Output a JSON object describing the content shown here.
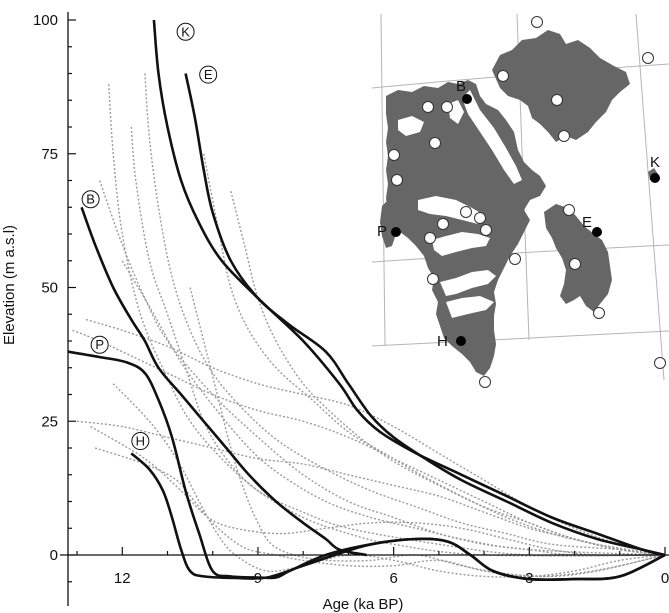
{
  "chart_data": {
    "type": "line",
    "xlabel": "Age (ka BP)",
    "ylabel": "Elevation (m a.s.l)",
    "xlim": [
      13.2,
      0
    ],
    "ylim": [
      -7,
      100
    ],
    "x_ticks": [
      {
        "value": 12,
        "label": "12"
      },
      {
        "value": 9,
        "label": "9"
      },
      {
        "value": 6,
        "label": "6"
      },
      {
        "value": 3,
        "label": "3"
      },
      {
        "value": 0,
        "label": "0"
      }
    ],
    "y_ticks": [
      {
        "value": 0,
        "label": "0"
      },
      {
        "value": 25,
        "label": "25"
      },
      {
        "value": 50,
        "label": "50"
      },
      {
        "value": 75,
        "label": "75"
      },
      {
        "value": 100,
        "label": "100"
      }
    ],
    "highlighted_series": [
      {
        "name": "K",
        "label_at": [
          10.6,
          97.8
        ],
        "points": [
          [
            11.3,
            100
          ],
          [
            11.2,
            90
          ],
          [
            11.0,
            80
          ],
          [
            10.7,
            70
          ],
          [
            10.3,
            62
          ],
          [
            9.8,
            55
          ],
          [
            9.0,
            48
          ],
          [
            8.0,
            40
          ],
          [
            7.2,
            32
          ],
          [
            6.8,
            27
          ],
          [
            6.3,
            23
          ],
          [
            5.5,
            19
          ],
          [
            4.5,
            15
          ],
          [
            3.5,
            11
          ],
          [
            2.5,
            7
          ],
          [
            1.5,
            4
          ],
          [
            0.5,
            1
          ],
          [
            0,
            0
          ]
        ]
      },
      {
        "name": "E",
        "label_at": [
          10.1,
          89.8
        ],
        "points": [
          [
            10.6,
            90
          ],
          [
            10.4,
            82
          ],
          [
            10.2,
            72
          ],
          [
            10.0,
            64
          ],
          [
            9.6,
            55
          ],
          [
            9.0,
            48
          ],
          [
            8.3,
            43
          ],
          [
            7.5,
            38
          ],
          [
            7.0,
            32
          ],
          [
            6.5,
            26
          ],
          [
            6.0,
            22
          ],
          [
            5.3,
            18
          ],
          [
            4.5,
            14
          ],
          [
            3.5,
            10
          ],
          [
            2.5,
            6
          ],
          [
            1.5,
            3
          ],
          [
            0.5,
            1
          ],
          [
            0,
            0
          ]
        ]
      },
      {
        "name": "B",
        "label_at": [
          12.7,
          66.5
        ],
        "points": [
          [
            12.9,
            65
          ],
          [
            12.6,
            58
          ],
          [
            12.2,
            50
          ],
          [
            11.8,
            44
          ],
          [
            11.5,
            40
          ],
          [
            11.2,
            35
          ],
          [
            10.7,
            30
          ],
          [
            10.2,
            25
          ],
          [
            9.7,
            20
          ],
          [
            9.2,
            15
          ],
          [
            8.6,
            10
          ],
          [
            8.0,
            6
          ],
          [
            7.5,
            3
          ],
          [
            7.2,
            1
          ],
          [
            6.6,
            0
          ]
        ]
      },
      {
        "name": "P",
        "label_at": [
          12.5,
          39.3
        ],
        "points": [
          [
            13.2,
            38
          ],
          [
            12.5,
            37
          ],
          [
            11.9,
            36
          ],
          [
            11.5,
            34
          ],
          [
            11.2,
            29
          ],
          [
            10.9,
            22
          ],
          [
            10.6,
            12
          ],
          [
            10.3,
            4
          ],
          [
            10.0,
            -3
          ],
          [
            9.6,
            -4
          ],
          [
            9.0,
            -4.2
          ],
          [
            8.6,
            -4.2
          ],
          [
            8.3,
            -3
          ],
          [
            7.5,
            0
          ],
          [
            6.5,
            2
          ],
          [
            5.5,
            3
          ],
          [
            4.8,
            2.5
          ],
          [
            4.3,
            0
          ],
          [
            3.8,
            -3
          ],
          [
            3.0,
            -4.5
          ],
          [
            2.0,
            -4.5
          ],
          [
            1.0,
            -4
          ],
          [
            0,
            0
          ]
        ]
      },
      {
        "name": "H",
        "label_at": [
          11.6,
          21.3
        ],
        "points": [
          [
            11.8,
            19
          ],
          [
            11.4,
            16
          ],
          [
            11.1,
            12
          ],
          [
            10.9,
            7
          ],
          [
            10.7,
            1
          ],
          [
            10.5,
            -3
          ],
          [
            10.2,
            -4
          ],
          [
            9.5,
            -4.3
          ],
          [
            8.8,
            -4.2
          ],
          [
            8.0,
            -2
          ],
          [
            7.3,
            0
          ],
          [
            6.5,
            2
          ],
          [
            5.5,
            3
          ],
          [
            4.8,
            2.5
          ],
          [
            4.3,
            0
          ],
          [
            3.8,
            -3
          ],
          [
            3.0,
            -4.5
          ],
          [
            2.0,
            -4.5
          ],
          [
            1.0,
            -4
          ],
          [
            0,
            0
          ]
        ]
      }
    ],
    "background_series": [
      {
        "points": [
          [
            12.5,
            70
          ],
          [
            12.0,
            58
          ],
          [
            11.5,
            48
          ],
          [
            11.0,
            40
          ],
          [
            10.0,
            30
          ],
          [
            9.0,
            22
          ],
          [
            8.0,
            15
          ],
          [
            7.0,
            10
          ],
          [
            6.0,
            7
          ],
          [
            5.0,
            4
          ],
          [
            4.0,
            2
          ],
          [
            3.0,
            1
          ],
          [
            2.0,
            0
          ],
          [
            0,
            0
          ]
        ]
      },
      {
        "points": [
          [
            12.3,
            88
          ],
          [
            12.2,
            75
          ],
          [
            12.0,
            60
          ],
          [
            11.6,
            45
          ],
          [
            11.0,
            33
          ],
          [
            10.5,
            25
          ],
          [
            9.8,
            18
          ],
          [
            9.0,
            12
          ],
          [
            8.0,
            7
          ],
          [
            7.0,
            4
          ],
          [
            6.0,
            2
          ],
          [
            4.0,
            0
          ],
          [
            0,
            0
          ]
        ]
      },
      {
        "points": [
          [
            11.8,
            80
          ],
          [
            11.7,
            70
          ],
          [
            11.4,
            55
          ],
          [
            11.0,
            45
          ],
          [
            10.6,
            35
          ],
          [
            10.2,
            25
          ],
          [
            9.7,
            18
          ],
          [
            9.0,
            12
          ],
          [
            8.0,
            8
          ],
          [
            7.0,
            5
          ],
          [
            5.0,
            2
          ],
          [
            3.0,
            0
          ],
          [
            0,
            0
          ]
        ]
      },
      {
        "points": [
          [
            12.0,
            55
          ],
          [
            11.3,
            45
          ],
          [
            10.7,
            36
          ],
          [
            10.0,
            28
          ],
          [
            9.2,
            20
          ],
          [
            8.5,
            15
          ],
          [
            7.5,
            10
          ],
          [
            6.5,
            7
          ],
          [
            5.5,
            5
          ],
          [
            4.5,
            3
          ],
          [
            3.0,
            1
          ],
          [
            0,
            0
          ]
        ]
      },
      {
        "points": [
          [
            13.1,
            42
          ],
          [
            12.5,
            40
          ],
          [
            12.0,
            38
          ],
          [
            11.0,
            34
          ],
          [
            10.0,
            30
          ],
          [
            9.0,
            27
          ],
          [
            8.0,
            25
          ],
          [
            7.0,
            22
          ],
          [
            6.0,
            18
          ],
          [
            5.0,
            14
          ],
          [
            4.0,
            10
          ],
          [
            3.0,
            6
          ],
          [
            2.0,
            3
          ],
          [
            1.0,
            1
          ],
          [
            0,
            0
          ]
        ]
      },
      {
        "points": [
          [
            12.8,
            44
          ],
          [
            12.0,
            42
          ],
          [
            11.0,
            39
          ],
          [
            10.0,
            35
          ],
          [
            9.0,
            32
          ],
          [
            8.0,
            30
          ],
          [
            7.0,
            28
          ],
          [
            6.0,
            24
          ],
          [
            5.0,
            19
          ],
          [
            4.0,
            14
          ],
          [
            3.0,
            9
          ],
          [
            2.0,
            5
          ],
          [
            1.0,
            2
          ],
          [
            0,
            0
          ]
        ]
      },
      {
        "points": [
          [
            13.0,
            25
          ],
          [
            12.0,
            24
          ],
          [
            11.0,
            22
          ],
          [
            10.0,
            20
          ],
          [
            9.0,
            18
          ],
          [
            8.0,
            17
          ],
          [
            7.0,
            15
          ],
          [
            6.0,
            13
          ],
          [
            5.0,
            11
          ],
          [
            4.0,
            8
          ],
          [
            3.0,
            5
          ],
          [
            2.0,
            3
          ],
          [
            1.0,
            1
          ],
          [
            0,
            0
          ]
        ]
      },
      {
        "points": [
          [
            12.6,
            20
          ],
          [
            11.5,
            17
          ],
          [
            10.8,
            14
          ],
          [
            10.4,
            10
          ],
          [
            10.0,
            6
          ],
          [
            9.6,
            3
          ],
          [
            9.2,
            1
          ],
          [
            8.6,
            0
          ],
          [
            8.0,
            -1
          ],
          [
            7.0,
            -2
          ],
          [
            6.0,
            -2
          ],
          [
            5.0,
            -1
          ],
          [
            4.0,
            -3
          ],
          [
            3.0,
            -4
          ],
          [
            2.0,
            -3.5
          ],
          [
            1.0,
            -2
          ],
          [
            0,
            0
          ]
        ]
      },
      {
        "points": [
          [
            12.2,
            32
          ],
          [
            11.4,
            25
          ],
          [
            10.8,
            18
          ],
          [
            10.3,
            10
          ],
          [
            9.9,
            4
          ],
          [
            9.5,
            0
          ],
          [
            8.8,
            -3
          ],
          [
            8.0,
            -2
          ],
          [
            7.0,
            0
          ],
          [
            6.0,
            -1
          ],
          [
            5.0,
            -3
          ],
          [
            4.0,
            -4
          ],
          [
            3.0,
            -4
          ],
          [
            2.0,
            -3
          ],
          [
            1.0,
            -1
          ],
          [
            0,
            0
          ]
        ]
      },
      {
        "points": [
          [
            11.5,
            90
          ],
          [
            11.4,
            78
          ],
          [
            11.2,
            65
          ],
          [
            10.9,
            52
          ],
          [
            10.5,
            42
          ],
          [
            10.0,
            34
          ],
          [
            9.3,
            27
          ],
          [
            8.5,
            21
          ],
          [
            7.5,
            16
          ],
          [
            6.5,
            12
          ],
          [
            5.5,
            9
          ],
          [
            4.5,
            6
          ],
          [
            3.5,
            4
          ],
          [
            2.5,
            2
          ],
          [
            1.0,
            1
          ],
          [
            0,
            0
          ]
        ]
      },
      {
        "points": [
          [
            10.2,
            75
          ],
          [
            9.9,
            62
          ],
          [
            9.6,
            50
          ],
          [
            9.2,
            42
          ],
          [
            8.6,
            35
          ],
          [
            7.8,
            29
          ],
          [
            7.0,
            23
          ],
          [
            6.2,
            19
          ],
          [
            5.4,
            15
          ],
          [
            4.5,
            11
          ],
          [
            3.5,
            7
          ],
          [
            2.5,
            4
          ],
          [
            1.5,
            2
          ],
          [
            0,
            0
          ]
        ]
      },
      {
        "points": [
          [
            10.5,
            50
          ],
          [
            10.2,
            40
          ],
          [
            9.9,
            30
          ],
          [
            9.6,
            20
          ],
          [
            9.3,
            12
          ],
          [
            9.0,
            6
          ],
          [
            8.7,
            2
          ],
          [
            8.2,
            0
          ],
          [
            7.5,
            -1
          ],
          [
            6.5,
            -1
          ],
          [
            5.5,
            0
          ],
          [
            4.5,
            -2
          ],
          [
            3.5,
            -3.5
          ],
          [
            2.5,
            -4
          ],
          [
            1.5,
            -3
          ],
          [
            0.5,
            -1
          ],
          [
            0,
            0
          ]
        ]
      },
      {
        "points": [
          [
            12.7,
            24
          ],
          [
            11.5,
            18
          ],
          [
            10.7,
            12
          ],
          [
            10.1,
            7
          ],
          [
            9.5,
            5
          ],
          [
            8.5,
            4
          ],
          [
            7.5,
            5
          ],
          [
            6.5,
            6
          ],
          [
            5.5,
            6
          ],
          [
            4.5,
            5
          ],
          [
            3.5,
            3
          ],
          [
            2.5,
            1
          ],
          [
            1.5,
            0
          ],
          [
            0,
            0
          ]
        ]
      },
      {
        "points": [
          [
            9.6,
            68
          ],
          [
            9.3,
            58
          ],
          [
            9.0,
            48
          ],
          [
            8.6,
            40
          ],
          [
            8.0,
            32
          ],
          [
            7.3,
            26
          ],
          [
            6.6,
            21
          ],
          [
            5.9,
            17
          ],
          [
            5.0,
            13
          ],
          [
            4.0,
            9
          ],
          [
            3.0,
            6
          ],
          [
            2.0,
            3
          ],
          [
            1.0,
            1
          ],
          [
            0,
            0
          ]
        ]
      }
    ]
  },
  "map": {
    "sites": [
      {
        "label": "B",
        "role": "highlighted"
      },
      {
        "label": "K",
        "role": "highlighted"
      },
      {
        "label": "P",
        "role": "highlighted"
      },
      {
        "label": "E",
        "role": "highlighted"
      },
      {
        "label": "H",
        "role": "highlighted"
      }
    ]
  },
  "colors": {
    "highlighted_line": "#111111",
    "background_line": "#9a9a9a",
    "land": "#666666",
    "graticule": "#b5b5b5",
    "open_site": "#ffffff"
  }
}
